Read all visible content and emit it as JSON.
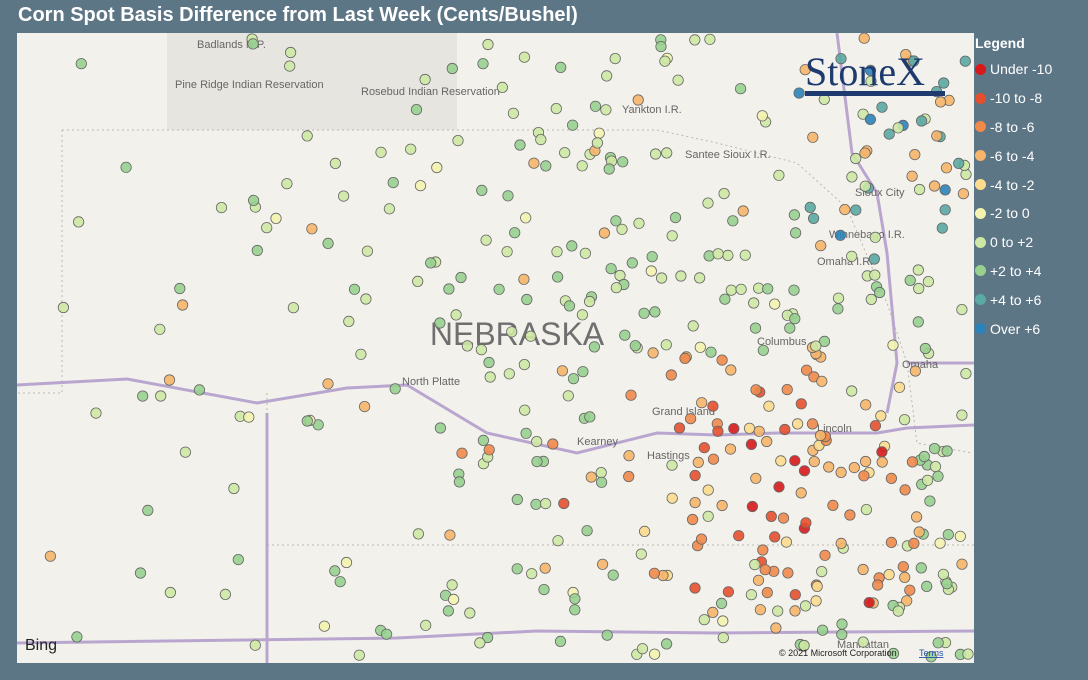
{
  "header": {
    "title": "Corn Spot Basis Difference from Last Week (Cents/Bushel)"
  },
  "legend": {
    "title": "Legend",
    "items": [
      {
        "label": "Under -10",
        "color": "#d7191c"
      },
      {
        "label": "-10 to -8",
        "color": "#e4502f"
      },
      {
        "label": "-8 to -6",
        "color": "#f08a4b"
      },
      {
        "label": "-6 to -4",
        "color": "#f6b56a"
      },
      {
        "label": "-4 to -2",
        "color": "#fbdc8e"
      },
      {
        "label": "-2 to 0",
        "color": "#f4f3b0"
      },
      {
        "label": "0 to +2",
        "color": "#cde8a4"
      },
      {
        "label": "+2 to +4",
        "color": "#97d08f"
      },
      {
        "label": "+4 to +6",
        "color": "#5aa9a4"
      },
      {
        "label": "Over +6",
        "color": "#2b83ba"
      }
    ]
  },
  "map": {
    "state_label": "NEBRASKA",
    "places": [
      "Badlands N.P.",
      "Pine Ridge Indian Reservation",
      "Rosebud Indian Reservation",
      "Yankton I.R.",
      "Santee Sioux I.R.",
      "Sioux City",
      "Winnebago I.R.",
      "Omaha I.R.",
      "North Platte",
      "Columbus",
      "Omaha",
      "Grand Island",
      "Kearney",
      "Hastings",
      "Lincoln",
      "Manhattan"
    ]
  },
  "logo": "StoneX",
  "footer": {
    "provider": "Bing",
    "copyright": "© 2021 Microsoft Corporation",
    "terms": "Terms"
  }
}
